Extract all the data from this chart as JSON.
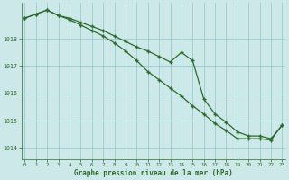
{
  "background_color": "#cce8e8",
  "grid_color": "#99cccc",
  "line_color": "#2d6a2d",
  "xlabel": "Graphe pression niveau de la mer (hPa)",
  "ylim": [
    1013.6,
    1019.3
  ],
  "xlim": [
    -0.3,
    23.3
  ],
  "yticks": [
    1014,
    1015,
    1016,
    1017,
    1018
  ],
  "xticks": [
    0,
    1,
    2,
    3,
    4,
    5,
    6,
    7,
    8,
    9,
    10,
    11,
    12,
    13,
    14,
    15,
    16,
    17,
    18,
    19,
    20,
    21,
    22,
    23
  ],
  "series1": [
    1018.75,
    1018.9,
    1019.05,
    1018.85,
    1018.75,
    1018.6,
    1018.45,
    1018.3,
    1018.1,
    1017.9,
    1017.7,
    1017.55,
    1017.35,
    1017.15,
    1017.5,
    1017.2,
    1015.8,
    1015.25,
    1014.95,
    1014.6,
    1014.45,
    1014.45,
    1014.35,
    1014.85
  ],
  "series2": [
    1018.75,
    1018.9,
    1019.05,
    1018.85,
    1018.7,
    1018.5,
    1018.3,
    1018.1,
    1017.85,
    1017.55,
    1017.2,
    1016.8,
    1016.5,
    1016.2,
    1015.9,
    1015.55,
    1015.25,
    1014.9,
    1014.65,
    1014.35,
    1014.35,
    1014.35,
    1014.3,
    1014.85
  ]
}
